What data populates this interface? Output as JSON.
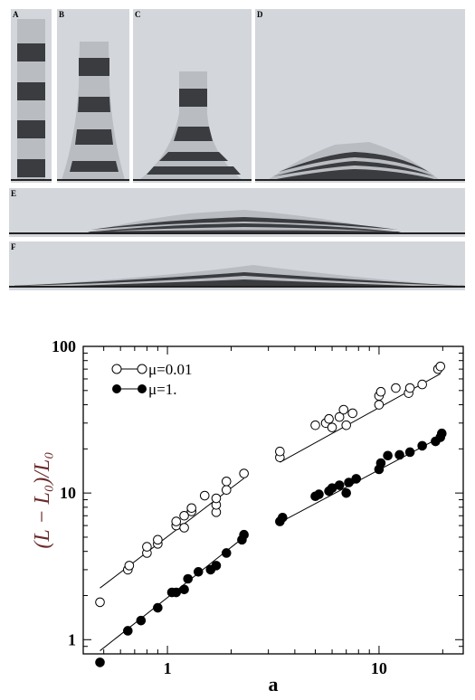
{
  "panels": [
    {
      "label": "A",
      "layers": 5
    },
    {
      "label": "B",
      "layers": 5
    },
    {
      "label": "C",
      "layers": 5
    },
    {
      "label": "D",
      "layers": 5
    },
    {
      "label": "E",
      "layers": 5
    },
    {
      "label": "F",
      "layers": 5
    }
  ],
  "colors": {
    "panel_background": "#d3d6db",
    "light_band": "#b9bcc1",
    "dark_band": "#3a3c40",
    "ground_line": "#222222",
    "marker": "#000000"
  },
  "chart_data": {
    "type": "scatter",
    "log_x": true,
    "log_y": true,
    "xlabel": "a",
    "ylabel": "(L − L₀)/L₀",
    "xlim": [
      0.4,
      25
    ],
    "ylim": [
      0.8,
      100
    ],
    "x_ticks": [
      1,
      10
    ],
    "x_tick_labels": [
      "1",
      "10"
    ],
    "y_ticks": [
      1,
      10,
      100
    ],
    "y_tick_labels": [
      "1",
      "10",
      "100"
    ],
    "grid": false,
    "legend": "top-left",
    "series": [
      {
        "name": "μ=0.01",
        "marker": "open-circle",
        "points": [
          [
            0.48,
            1.8
          ],
          [
            0.65,
            3.0
          ],
          [
            0.66,
            3.2
          ],
          [
            0.8,
            3.9
          ],
          [
            0.8,
            4.3
          ],
          [
            0.9,
            4.5
          ],
          [
            0.9,
            4.8
          ],
          [
            1.1,
            6.0
          ],
          [
            1.1,
            6.4
          ],
          [
            1.2,
            5.8
          ],
          [
            1.2,
            7.0
          ],
          [
            1.3,
            7.5
          ],
          [
            1.3,
            7.9
          ],
          [
            1.5,
            9.6
          ],
          [
            1.7,
            7.4
          ],
          [
            1.7,
            8.3
          ],
          [
            1.7,
            9.2
          ],
          [
            1.9,
            10.5
          ],
          [
            1.9,
            12.0
          ],
          [
            2.3,
            13.6
          ],
          [
            3.4,
            17.5
          ],
          [
            3.4,
            19.2
          ],
          [
            5.0,
            29.0
          ],
          [
            5.6,
            30.0
          ],
          [
            5.8,
            32.0
          ],
          [
            6.0,
            28.0
          ],
          [
            6.5,
            33.0
          ],
          [
            6.8,
            37.0
          ],
          [
            7.0,
            29.0
          ],
          [
            7.5,
            35.0
          ],
          [
            10.0,
            40.0
          ],
          [
            10.0,
            46.0
          ],
          [
            10.2,
            49.0
          ],
          [
            12.0,
            52.0
          ],
          [
            13.8,
            48.0
          ],
          [
            14.0,
            52.0
          ],
          [
            16.0,
            55.0
          ],
          [
            19.0,
            70.0
          ],
          [
            19.5,
            73.0
          ]
        ],
        "trend": {
          "x": [
            0.48,
            2.3
          ],
          "y": [
            2.25,
            12.6
          ]
        },
        "trend_right": {
          "x": [
            3.4,
            19.5
          ],
          "y": [
            16.2,
            65.0
          ]
        }
      },
      {
        "name": "μ=1.",
        "marker": "filled-circle",
        "points": [
          [
            0.48,
            0.7
          ],
          [
            0.65,
            1.15
          ],
          [
            0.75,
            1.35
          ],
          [
            0.9,
            1.65
          ],
          [
            1.05,
            2.1
          ],
          [
            1.1,
            2.1
          ],
          [
            1.2,
            2.2
          ],
          [
            1.25,
            2.6
          ],
          [
            1.4,
            2.9
          ],
          [
            1.6,
            3.0
          ],
          [
            1.7,
            3.2
          ],
          [
            1.9,
            3.9
          ],
          [
            2.25,
            4.8
          ],
          [
            2.3,
            5.2
          ],
          [
            3.4,
            6.4
          ],
          [
            3.5,
            6.8
          ],
          [
            5.0,
            9.5
          ],
          [
            5.2,
            9.8
          ],
          [
            5.8,
            10.3
          ],
          [
            6.0,
            10.8
          ],
          [
            6.5,
            11.3
          ],
          [
            7.0,
            10.0
          ],
          [
            7.2,
            11.8
          ],
          [
            7.8,
            12.5
          ],
          [
            10.0,
            14.5
          ],
          [
            10.2,
            16.0
          ],
          [
            11.0,
            18.0
          ],
          [
            12.5,
            18.2
          ],
          [
            14.0,
            19.0
          ],
          [
            16.0,
            21.0
          ],
          [
            18.5,
            22.5
          ],
          [
            19.5,
            24.0
          ],
          [
            19.8,
            25.5
          ]
        ],
        "trend": {
          "x": [
            0.48,
            2.3
          ],
          "y": [
            0.84,
            5.0
          ]
        },
        "trend_right": {
          "x": [
            3.4,
            19.5
          ],
          "y": [
            6.3,
            24.0
          ]
        }
      }
    ]
  }
}
